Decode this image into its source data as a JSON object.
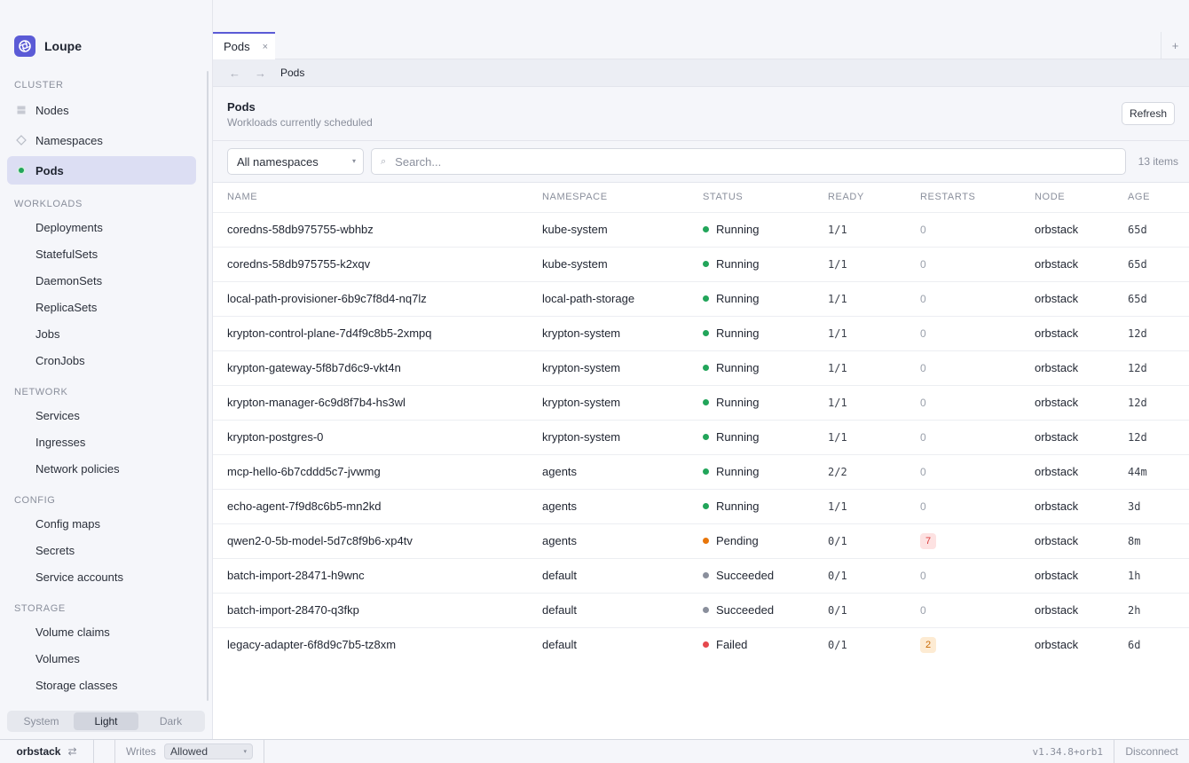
{
  "app": {
    "name": "Loupe",
    "logo_icon": "aperture-icon",
    "accent_color": "#5b5bd6"
  },
  "sidebar": {
    "sections": {
      "cluster": "CLUSTER",
      "workloads": "WORKLOADS",
      "network": "NETWORK",
      "config": "CONFIG",
      "storage": "STORAGE"
    },
    "cluster_items": [
      {
        "label": "Nodes",
        "icon": "server-icon"
      },
      {
        "label": "Namespaces",
        "icon": "diamond-icon"
      },
      {
        "label": "Pods",
        "icon": "pod-dot-icon",
        "active": true
      }
    ],
    "workloads_items": [
      "Deployments",
      "StatefulSets",
      "DaemonSets",
      "ReplicaSets",
      "Jobs",
      "CronJobs"
    ],
    "network_items": [
      "Services",
      "Ingresses",
      "Network policies"
    ],
    "config_items": [
      "Config maps",
      "Secrets",
      "Service accounts"
    ],
    "storage_items": [
      "Volume claims",
      "Volumes",
      "Storage classes"
    ],
    "theme": {
      "options": [
        "System",
        "Light",
        "Dark"
      ],
      "selected": "Light"
    }
  },
  "tabs": [
    {
      "label": "Pods",
      "close": "×"
    }
  ],
  "tab_add": "+",
  "breadcrumb": {
    "back": "←",
    "forward": "→",
    "current": "Pods"
  },
  "page": {
    "title": "Pods",
    "subtitle": "Workloads currently scheduled",
    "refresh_label": "Refresh"
  },
  "filters": {
    "namespace_selected": "All namespaces",
    "search_placeholder": "Search...",
    "search_icon": "⌕",
    "item_count": "13 items"
  },
  "table": {
    "columns": [
      "NAME",
      "NAMESPACE",
      "STATUS",
      "READY",
      "RESTARTS",
      "NODE",
      "AGE"
    ],
    "status_colors": {
      "Running": "#22a55a",
      "Pending": "#e8760a",
      "Succeeded": "#8a8f9c",
      "Failed": "#e5484d"
    },
    "rows": [
      {
        "name": "coredns-58db975755-wbhbz",
        "namespace": "kube-system",
        "status": "Running",
        "ready": "1/1",
        "restarts": "0",
        "node": "orbstack",
        "age": "65d"
      },
      {
        "name": "coredns-58db975755-k2xqv",
        "namespace": "kube-system",
        "status": "Running",
        "ready": "1/1",
        "restarts": "0",
        "node": "orbstack",
        "age": "65d"
      },
      {
        "name": "local-path-provisioner-6b9c7f8d4-nq7lz",
        "namespace": "local-path-storage",
        "status": "Running",
        "ready": "1/1",
        "restarts": "0",
        "node": "orbstack",
        "age": "65d"
      },
      {
        "name": "krypton-control-plane-7d4f9c8b5-2xmpq",
        "namespace": "krypton-system",
        "status": "Running",
        "ready": "1/1",
        "restarts": "0",
        "node": "orbstack",
        "age": "12d"
      },
      {
        "name": "krypton-gateway-5f8b7d6c9-vkt4n",
        "namespace": "krypton-system",
        "status": "Running",
        "ready": "1/1",
        "restarts": "0",
        "node": "orbstack",
        "age": "12d"
      },
      {
        "name": "krypton-manager-6c9d8f7b4-hs3wl",
        "namespace": "krypton-system",
        "status": "Running",
        "ready": "1/1",
        "restarts": "0",
        "node": "orbstack",
        "age": "12d"
      },
      {
        "name": "krypton-postgres-0",
        "namespace": "krypton-system",
        "status": "Running",
        "ready": "1/1",
        "restarts": "0",
        "node": "orbstack",
        "age": "12d"
      },
      {
        "name": "mcp-hello-6b7cddd5c7-jvwmg",
        "namespace": "agents",
        "status": "Running",
        "ready": "2/2",
        "restarts": "0",
        "node": "orbstack",
        "age": "44m"
      },
      {
        "name": "echo-agent-7f9d8c6b5-mn2kd",
        "namespace": "agents",
        "status": "Running",
        "ready": "1/1",
        "restarts": "0",
        "node": "orbstack",
        "age": "3d"
      },
      {
        "name": "qwen2-0-5b-model-5d7c8f9b6-xp4tv",
        "namespace": "agents",
        "status": "Pending",
        "ready": "0/1",
        "restarts": "7",
        "restarts_badge": "danger",
        "node": "orbstack",
        "age": "8m"
      },
      {
        "name": "batch-import-28471-h9wnc",
        "namespace": "default",
        "status": "Succeeded",
        "ready": "0/1",
        "restarts": "0",
        "node": "orbstack",
        "age": "1h"
      },
      {
        "name": "batch-import-28470-q3fkp",
        "namespace": "default",
        "status": "Succeeded",
        "ready": "0/1",
        "restarts": "0",
        "node": "orbstack",
        "age": "2h"
      },
      {
        "name": "legacy-adapter-6f8d9c7b5-tz8xm",
        "namespace": "default",
        "status": "Failed",
        "ready": "0/1",
        "restarts": "2",
        "restarts_badge": "warning",
        "node": "orbstack",
        "age": "6d"
      }
    ]
  },
  "statusbar": {
    "context": "orbstack",
    "switch_icon": "⇄",
    "writes_label": "Writes",
    "writes_value": "Allowed",
    "version": "v1.34.8+orb1",
    "disconnect": "Disconnect"
  }
}
